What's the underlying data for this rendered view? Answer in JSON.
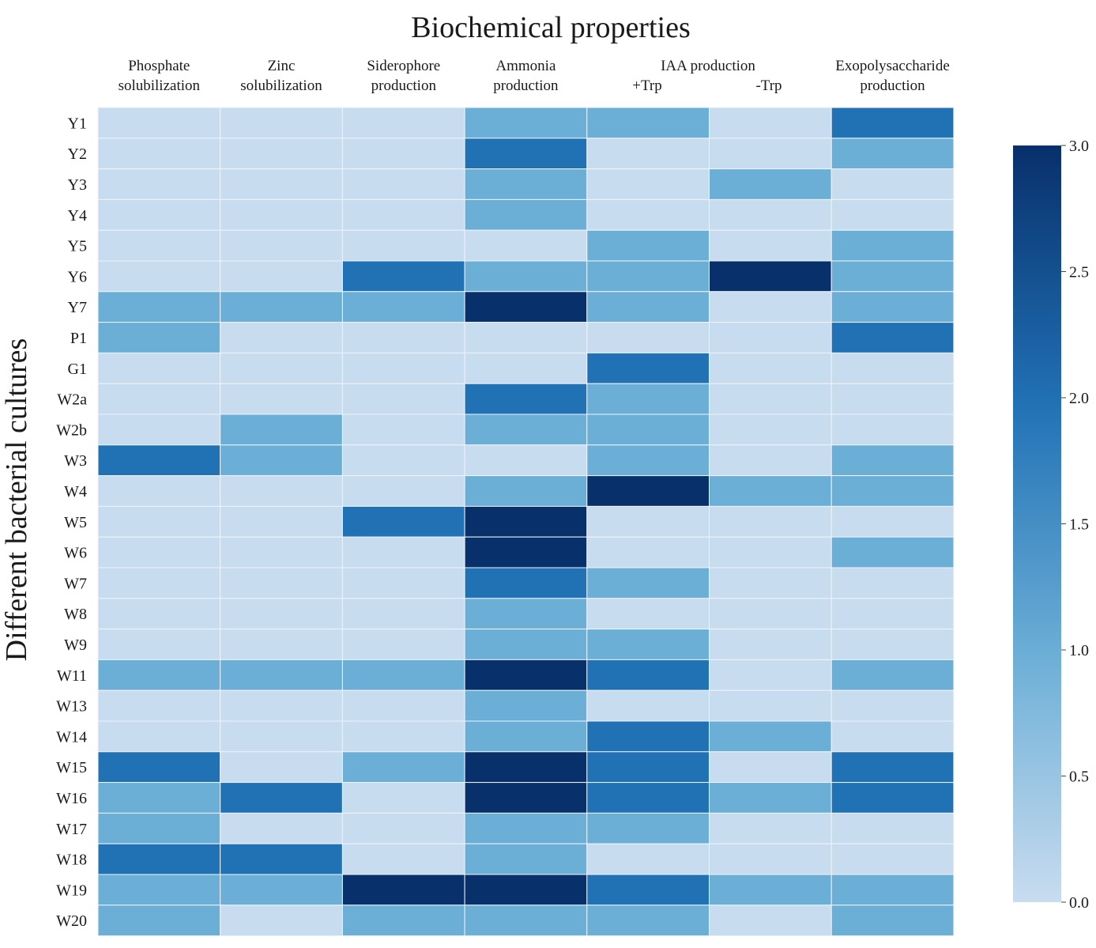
{
  "chart_data": {
    "type": "heatmap",
    "title": "Biochemical properties",
    "xlabel": "Biochemical properties",
    "ylabel": "Different bacterial cultures",
    "column_labels": [
      [
        "Phosphate",
        "solubilization"
      ],
      [
        "Zinc",
        "solubilization"
      ],
      [
        "Siderophore",
        "production"
      ],
      [
        "Ammonia",
        "production"
      ],
      [
        "+Trp"
      ],
      [
        "-Trp"
      ],
      [
        "Exopolysaccharide",
        "production"
      ]
    ],
    "column_group_label": "IAA production",
    "rows": [
      "Y1",
      "Y2",
      "Y3",
      "Y4",
      "Y5",
      "Y6",
      "Y7",
      "P1",
      "G1",
      "W2a",
      "W2b",
      "W3",
      "W4",
      "W5",
      "W6",
      "W7",
      "W8",
      "W9",
      "W11",
      "W13",
      "W14",
      "W15",
      "W16",
      "W17",
      "W18",
      "W19",
      "W20"
    ],
    "values": [
      [
        0,
        0,
        0,
        1,
        1,
        0,
        2
      ],
      [
        0,
        0,
        0,
        2,
        0,
        0,
        1
      ],
      [
        0,
        0,
        0,
        1,
        0,
        1,
        0
      ],
      [
        0,
        0,
        0,
        1,
        0,
        0,
        0
      ],
      [
        0,
        0,
        0,
        0,
        1,
        0,
        1
      ],
      [
        0,
        0,
        2,
        1,
        1,
        3,
        1
      ],
      [
        1,
        1,
        1,
        3,
        1,
        0,
        1
      ],
      [
        1,
        0,
        0,
        0,
        0,
        0,
        2
      ],
      [
        0,
        0,
        0,
        0,
        2,
        0,
        0
      ],
      [
        0,
        0,
        0,
        2,
        1,
        0,
        0
      ],
      [
        0,
        1,
        0,
        1,
        1,
        0,
        0
      ],
      [
        2,
        1,
        0,
        0,
        1,
        0,
        1
      ],
      [
        0,
        0,
        0,
        1,
        3,
        1,
        1
      ],
      [
        0,
        0,
        2,
        3,
        0,
        0,
        0
      ],
      [
        0,
        0,
        0,
        3,
        0,
        0,
        1
      ],
      [
        0,
        0,
        0,
        2,
        1,
        0,
        0
      ],
      [
        0,
        0,
        0,
        1,
        0,
        0,
        0
      ],
      [
        0,
        0,
        0,
        1,
        1,
        0,
        0
      ],
      [
        1,
        1,
        1,
        3,
        2,
        0,
        1
      ],
      [
        0,
        0,
        0,
        1,
        0,
        0,
        0
      ],
      [
        0,
        0,
        0,
        1,
        2,
        1,
        0
      ],
      [
        2,
        0,
        1,
        3,
        2,
        0,
        2
      ],
      [
        1,
        2,
        0,
        3,
        2,
        1,
        2
      ],
      [
        1,
        0,
        0,
        1,
        1,
        0,
        0
      ],
      [
        2,
        2,
        0,
        1,
        0,
        0,
        0
      ],
      [
        1,
        1,
        3,
        3,
        2,
        1,
        1
      ],
      [
        1,
        0,
        1,
        1,
        1,
        0,
        1
      ]
    ],
    "colorbar": {
      "min": 0.0,
      "max": 3.0,
      "ticks": [
        "0.0",
        "0.5",
        "1.0",
        "1.5",
        "2.0",
        "2.5",
        "3.0"
      ]
    },
    "colors": {
      "low": "#c8dcef",
      "level1": "#6baed6",
      "level2": "#2171b5",
      "high": "#08306b"
    }
  }
}
